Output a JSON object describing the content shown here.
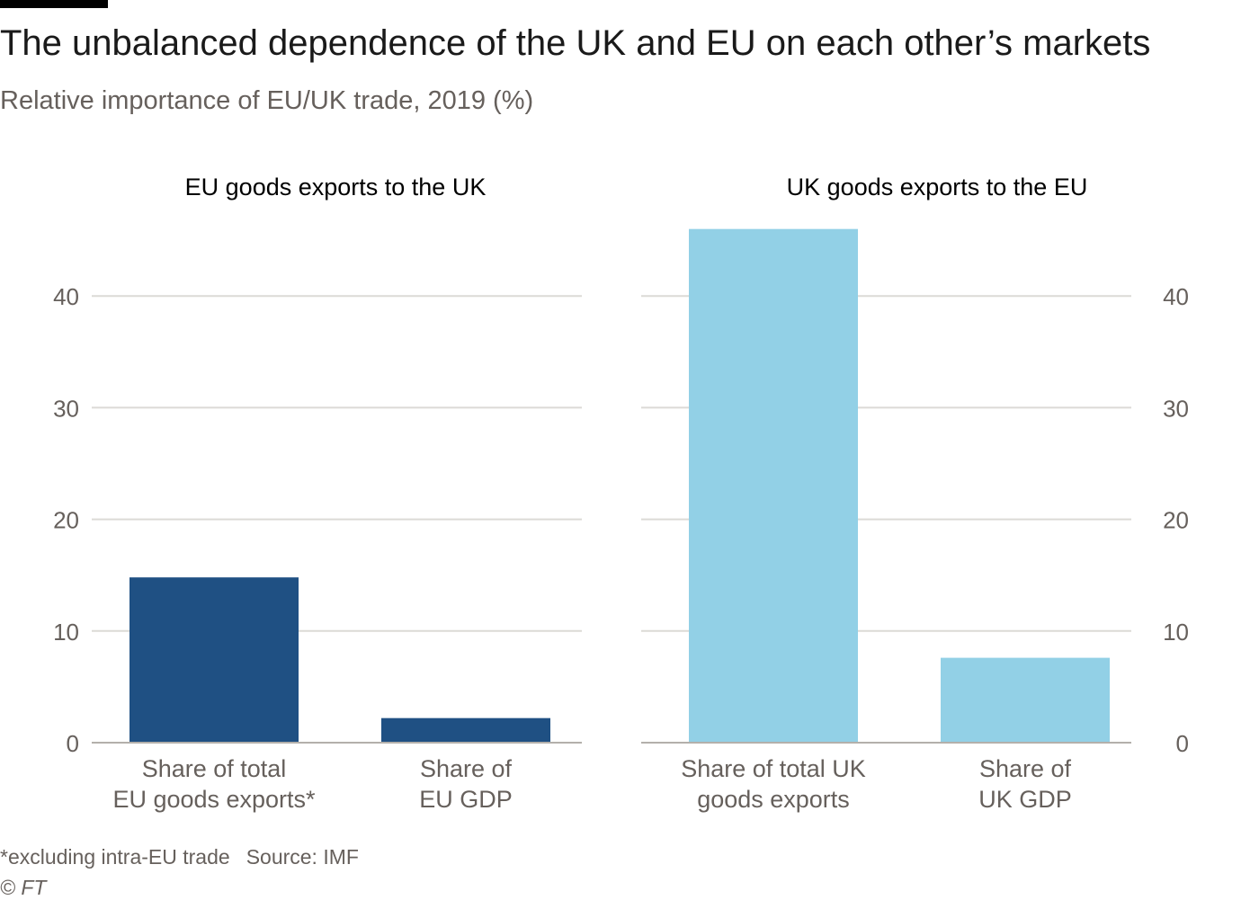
{
  "title": "The unbalanced dependence of the UK and EU on each other’s markets",
  "subtitle": "Relative importance of EU/UK trade, 2019 (%)",
  "footer": {
    "note": "*excluding intra-EU trade",
    "source": "Source: IMF",
    "copyright": "© FT"
  },
  "colors": {
    "eu_bar": "#1f5083",
    "uk_bar": "#92d0e6",
    "grid": "#dcdad6",
    "axis": "#b3b0ab",
    "tick_text": "#66605c"
  },
  "chart_data": [
    {
      "type": "bar",
      "title": "EU goods exports to the UK",
      "categories": [
        [
          "Share of total",
          "EU goods exports*"
        ],
        [
          "Share of",
          "EU GDP"
        ]
      ],
      "values": [
        14.8,
        2.2
      ],
      "ylim": [
        0,
        46
      ],
      "yticks": [
        0,
        10,
        20,
        30,
        40
      ],
      "ytick_side": "left",
      "grid": true
    },
    {
      "type": "bar",
      "title": "UK goods exports to the EU",
      "categories": [
        [
          "Share of total UK",
          "goods exports"
        ],
        [
          "Share of",
          "UK GDP"
        ]
      ],
      "values": [
        46.0,
        7.6
      ],
      "ylim": [
        0,
        46
      ],
      "yticks": [
        0,
        10,
        20,
        30,
        40
      ],
      "ytick_side": "right",
      "grid": true
    }
  ]
}
